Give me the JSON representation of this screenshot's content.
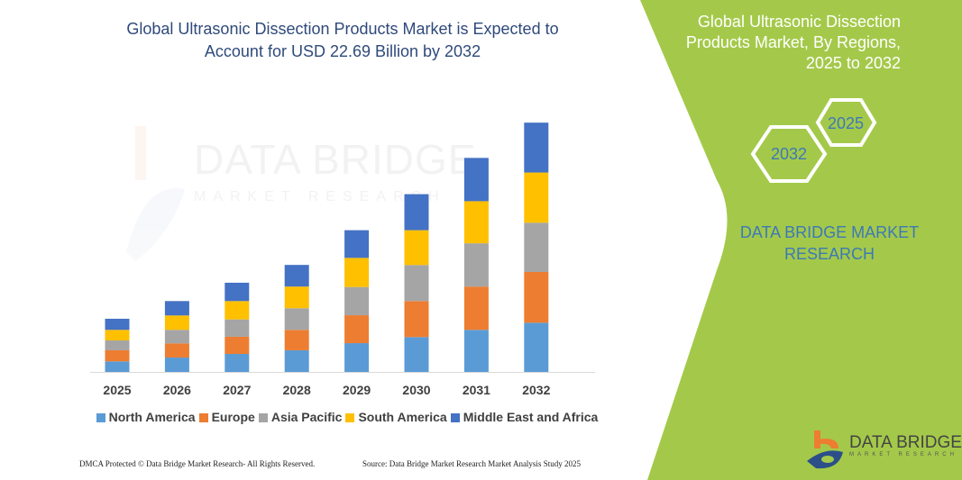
{
  "header": {
    "title_line1": "Global Ultrasonic Dissection Products Market is Expected to",
    "title_line2": "Account for USD 22.69 Billion by 2032"
  },
  "watermark": {
    "brand": "DATA BRIDGE",
    "sub": "MARKET RESEARCH"
  },
  "side_panel": {
    "title_line1": "Global Ultrasonic Dissection",
    "title_line2": "Products Market, By Regions,",
    "title_line3": "2025 to 2032",
    "hex_start": "2025",
    "hex_end": "2032",
    "brand_line1": "DATA BRIDGE MARKET",
    "brand_line2": "RESEARCH",
    "color": "#a4c94a"
  },
  "logo": {
    "name": "DATA BRIDGE",
    "sub": "MARKET RESEARCH"
  },
  "footer": {
    "left": "DMCA Protected © Data Bridge Market Research-  All Rights Reserved.",
    "right": "Source: Data Bridge Market Research  Market Analysis Study 2025"
  },
  "chart_data": {
    "type": "bar",
    "stacked": true,
    "title": "Global Ultrasonic Dissection Products Market is Expected to Account for USD 22.69 Billion by 2032",
    "xlabel": "",
    "ylabel": "",
    "grid": false,
    "legend_position": "bottom",
    "categories": [
      "2025",
      "2026",
      "2027",
      "2028",
      "2029",
      "2030",
      "2031",
      "2032"
    ],
    "series": [
      {
        "name": "North America",
        "color": "#5b9bd5",
        "values": [
          0.96,
          1.31,
          1.64,
          1.97,
          2.62,
          3.17,
          3.83,
          4.48
        ]
      },
      {
        "name": "Europe",
        "color": "#ed7d31",
        "values": [
          1.01,
          1.29,
          1.56,
          1.86,
          2.54,
          3.28,
          3.94,
          4.62
        ]
      },
      {
        "name": "Asia Pacific",
        "color": "#a5a5a5",
        "values": [
          0.9,
          1.23,
          1.58,
          1.97,
          2.57,
          3.28,
          3.94,
          4.48
        ]
      },
      {
        "name": "South America",
        "color": "#ffc000",
        "values": [
          0.96,
          1.31,
          1.67,
          1.97,
          2.65,
          3.17,
          3.83,
          4.57
        ]
      },
      {
        "name": "Middle East and Africa",
        "color": "#4472c4",
        "values": [
          1.01,
          1.31,
          1.67,
          1.97,
          2.52,
          3.28,
          3.94,
          4.54
        ]
      }
    ]
  }
}
